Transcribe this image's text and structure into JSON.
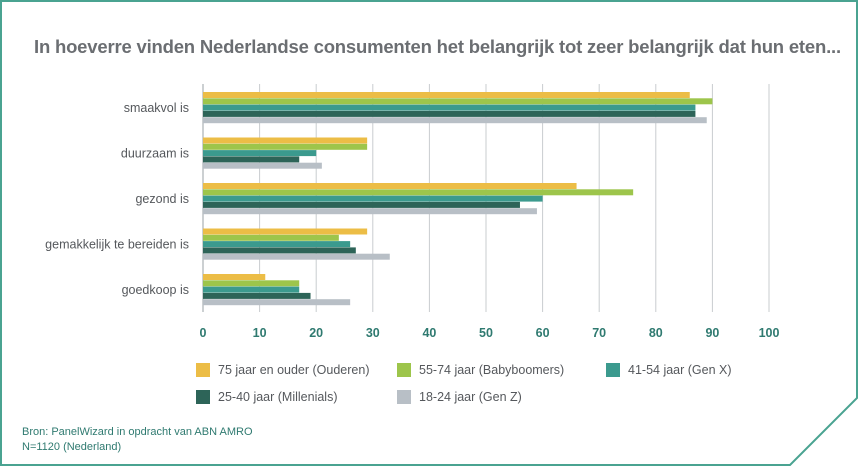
{
  "title": "In hoeverre vinden Nederlandse consumenten het belangrijk tot zeer belangrijk dat hun eten...",
  "source_line1": "Bron: PanelWizard in opdracht van ABN AMRO",
  "source_line2": "N=1120 (Nederland)",
  "colors": {
    "frame": "#4aa391",
    "title": "#6b6e72",
    "ticks": "#2f7a70",
    "grid": "#c9cccf",
    "series": [
      "#ecbd46",
      "#9dc54b",
      "#3b9a8e",
      "#2d6458",
      "#b8bfc6"
    ]
  },
  "legend": [
    {
      "label": "75 jaar en ouder (Ouderen)"
    },
    {
      "label": "55-74 jaar (Babyboomers)"
    },
    {
      "label": "41-54 jaar (Gen X)"
    },
    {
      "label": "25-40 jaar (Millenials)"
    },
    {
      "label": "18-24 jaar (Gen Z)"
    }
  ],
  "chart_data": {
    "type": "bar",
    "orientation": "horizontal",
    "title": "In hoeverre vinden Nederlandse consumenten het belangrijk tot zeer belangrijk dat hun eten...",
    "categories": [
      "smaakvol is",
      "duurzaam is",
      "gezond is",
      "gemakkelijk te bereiden is",
      "goedkoop is"
    ],
    "series": [
      {
        "name": "75 jaar en ouder (Ouderen)",
        "values": [
          86,
          29,
          66,
          29,
          11
        ]
      },
      {
        "name": "55-74 jaar (Babyboomers)",
        "values": [
          90,
          29,
          76,
          24,
          17
        ]
      },
      {
        "name": "41-54 jaar (Gen X)",
        "values": [
          87,
          20,
          60,
          26,
          17
        ]
      },
      {
        "name": "25-40 jaar (Millenials)",
        "values": [
          87,
          17,
          56,
          27,
          19
        ]
      },
      {
        "name": "18-24 jaar (Gen Z)",
        "values": [
          89,
          21,
          59,
          33,
          26
        ]
      }
    ],
    "xlim": [
      0,
      100
    ],
    "xticks": [
      0,
      10,
      20,
      30,
      40,
      50,
      60,
      70,
      80,
      90,
      100
    ],
    "grid": true,
    "legend_position": "bottom"
  }
}
